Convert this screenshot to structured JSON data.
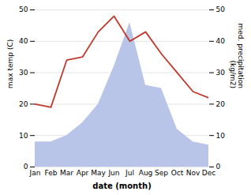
{
  "chart_data": {
    "type": "line",
    "categories": [
      "Jan",
      "Feb",
      "Mar",
      "Apr",
      "May",
      "Jun",
      "Jul",
      "Aug",
      "Sep",
      "Oct",
      "Nov",
      "Dec"
    ],
    "series": [
      {
        "type": "area",
        "color": "#b8c4e8",
        "values": [
          8,
          8,
          10,
          14,
          20,
          32,
          46,
          26,
          25,
          12,
          8,
          7
        ]
      },
      {
        "type": "line",
        "color": "#c0392b",
        "values": [
          20,
          19,
          34,
          35,
          43,
          48,
          40,
          43,
          36,
          30,
          24,
          22
        ]
      }
    ],
    "xlabel": "date (month)",
    "ylabel": "max temp (C)",
    "y2label": "med. precipitation\n(kg/m2)",
    "ylim": [
      0,
      50
    ],
    "yticks": [
      0,
      10,
      20,
      30,
      40,
      50
    ],
    "y2lim": [
      0,
      50
    ],
    "y2ticks": [
      0,
      10,
      20,
      30,
      40,
      50
    ],
    "grid": true
  }
}
